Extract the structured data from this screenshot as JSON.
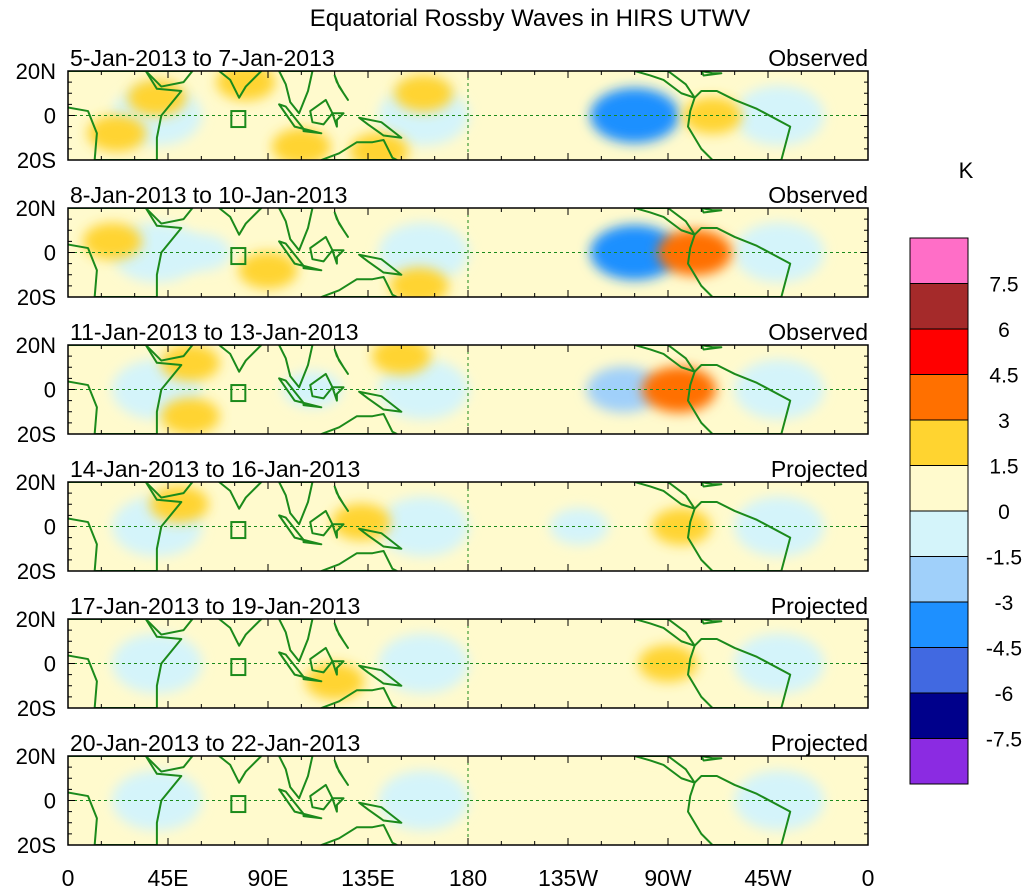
{
  "chart_data": {
    "type": "heatmap",
    "title": "Equatorial Rossby Waves in HIRS UTWV",
    "xlabel": "",
    "ylabel": "",
    "x_ticks": [
      "0",
      "45E",
      "90E",
      "135E",
      "180",
      "135W",
      "90W",
      "45W",
      "0"
    ],
    "y_ticks": [
      "20N",
      "0",
      "20S"
    ],
    "lat_range": [
      -20,
      20
    ],
    "lon_range": [
      0,
      360
    ],
    "colorbar": {
      "unit": "K",
      "levels": [
        "7.5",
        "6",
        "4.5",
        "3",
        "1.5",
        "0",
        "-1.5",
        "-3",
        "-4.5",
        "-6",
        "-7.5"
      ],
      "colors": [
        "#ff6ec7",
        "#a52a2a",
        "#ff0000",
        "#ff7000",
        "#ffd430",
        "#fffacd",
        "#d4f4fa",
        "#a0d0fa",
        "#1e90ff",
        "#4169e1",
        "#00008b",
        "#8b2be2"
      ]
    },
    "panels": [
      {
        "date_range": "5-Jan-2013 to 7-Jan-2013",
        "status": "Observed",
        "features": [
          {
            "lon": 40,
            "lat": 8,
            "value": 1.5
          },
          {
            "lon": 22,
            "lat": -8,
            "value": 1.5
          },
          {
            "lon": 80,
            "lat": 15,
            "value": 1.5
          },
          {
            "lon": 105,
            "lat": -14,
            "value": 1.5
          },
          {
            "lon": 140,
            "lat": -16,
            "value": 1.5
          },
          {
            "lon": 160,
            "lat": 10,
            "value": 1.5
          },
          {
            "lon": 255,
            "lat": 0,
            "value": -4.5
          },
          {
            "lon": 290,
            "lat": 0,
            "value": 1.5
          }
        ]
      },
      {
        "date_range": "8-Jan-2013 to 10-Jan-2013",
        "status": "Observed",
        "features": [
          {
            "lon": 20,
            "lat": 5,
            "value": 1.5
          },
          {
            "lon": 60,
            "lat": 0,
            "value": -1.5
          },
          {
            "lon": 90,
            "lat": -8,
            "value": 1.5
          },
          {
            "lon": 158,
            "lat": -15,
            "value": 1.5
          },
          {
            "lon": 255,
            "lat": 0,
            "value": -4.5
          },
          {
            "lon": 282,
            "lat": 0,
            "value": 3
          }
        ]
      },
      {
        "date_range": "11-Jan-2013 to 13-Jan-2013",
        "status": "Observed",
        "features": [
          {
            "lon": 55,
            "lat": 12,
            "value": 1.5
          },
          {
            "lon": 55,
            "lat": -12,
            "value": 1.5
          },
          {
            "lon": 110,
            "lat": 0,
            "value": -1.5
          },
          {
            "lon": 150,
            "lat": 15,
            "value": 1.5
          },
          {
            "lon": 250,
            "lat": 0,
            "value": -3
          },
          {
            "lon": 275,
            "lat": 0,
            "value": 3
          }
        ]
      },
      {
        "date_range": "14-Jan-2013 to 16-Jan-2013",
        "status": "Projected",
        "features": [
          {
            "lon": 50,
            "lat": 10,
            "value": 1.5
          },
          {
            "lon": 132,
            "lat": 2,
            "value": 1.5
          },
          {
            "lon": 230,
            "lat": 0,
            "value": -1.5
          },
          {
            "lon": 276,
            "lat": 0,
            "value": 1.5
          }
        ]
      },
      {
        "date_range": "17-Jan-2013 to 19-Jan-2013",
        "status": "Projected",
        "features": [
          {
            "lon": 120,
            "lat": -8,
            "value": 1.5
          },
          {
            "lon": 270,
            "lat": 0,
            "value": 1.5
          }
        ]
      },
      {
        "date_range": "20-Jan-2013 to 22-Jan-2013",
        "status": "Projected",
        "features": [
          {
            "lon": 125,
            "lat": 10,
            "value": 0.5
          },
          {
            "lon": 200,
            "lat": -5,
            "value": 0.5
          },
          {
            "lon": 260,
            "lat": 0,
            "value": 0.5
          }
        ]
      }
    ]
  }
}
